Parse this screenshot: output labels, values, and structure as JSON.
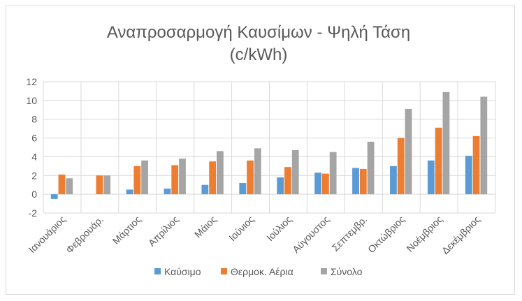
{
  "chart_data": {
    "type": "bar",
    "title": "Αναπροσαρμογή Καυσίμων - Ψηλή Τάση",
    "subtitle": "(c/kWh)",
    "xlabel": "",
    "ylabel": "",
    "categories": [
      "Ιανουάριος",
      "Φεβρουάρ.",
      "Μάρτιος",
      "Απρίλιος",
      "Μάιος",
      "Ιούνιος",
      "Ιούλιος",
      "Αύγουστος",
      "Σεπτεμβρ.",
      "Οκτώβριος",
      "Νοέμβριος",
      "Δεκέμβριος"
    ],
    "series": [
      {
        "name": "Καύσιμο",
        "color": "#5b9bd5",
        "values": [
          -0.5,
          0,
          0.5,
          0.6,
          1.0,
          1.2,
          1.8,
          2.3,
          2.8,
          3.0,
          3.6,
          4.1
        ]
      },
      {
        "name": "Θερμοκ. Αέρια",
        "color": "#ed7d31",
        "values": [
          2.1,
          2.0,
          3.0,
          3.1,
          3.5,
          3.6,
          2.9,
          2.2,
          2.7,
          6.0,
          7.1,
          6.2
        ]
      },
      {
        "name": "Σύνολο",
        "color": "#a5a5a5",
        "values": [
          1.7,
          2.0,
          3.6,
          3.8,
          4.6,
          4.9,
          4.7,
          4.5,
          5.6,
          9.1,
          10.9,
          10.4
        ]
      }
    ],
    "ylim": [
      -2,
      12
    ],
    "yticks": [
      -2,
      0,
      2,
      4,
      6,
      8,
      10,
      12
    ],
    "grid": true,
    "legend": "bottom"
  }
}
